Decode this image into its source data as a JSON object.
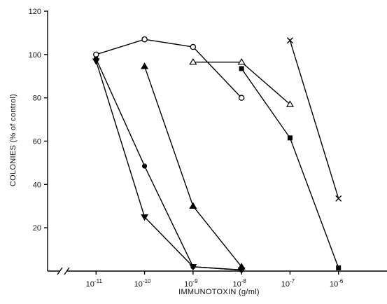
{
  "chart_data": {
    "type": "line",
    "title": "",
    "xlabel": "IMMUNOTOXIN (g/ml)",
    "ylabel": "COLONIES (% of control)",
    "x_scale": "log",
    "xlim": [
      1e-12,
      1e-05
    ],
    "ylim": [
      0,
      120
    ],
    "x_ticks": [
      {
        "value": 1e-11,
        "base": "10",
        "exp": "-11"
      },
      {
        "value": 1e-10,
        "base": "10",
        "exp": "-10"
      },
      {
        "value": 1e-09,
        "base": "10",
        "exp": "-9"
      },
      {
        "value": 1e-08,
        "base": "10",
        "exp": "-8"
      },
      {
        "value": 1e-07,
        "base": "10",
        "exp": "-7"
      },
      {
        "value": 1e-06,
        "base": "10",
        "exp": "-6"
      }
    ],
    "y_ticks": [
      20,
      40,
      60,
      80,
      100,
      120
    ],
    "axis_break": true,
    "grid": false,
    "legend": "none",
    "series": [
      {
        "marker": "open-circle",
        "points": [
          {
            "x": 1e-11,
            "y": 100
          },
          {
            "x": 1e-10,
            "y": 107
          },
          {
            "x": 1e-09,
            "y": 103.5
          },
          {
            "x": 1e-08,
            "y": 80
          }
        ]
      },
      {
        "marker": "filled-circle",
        "points": [
          {
            "x": 1e-11,
            "y": 98
          },
          {
            "x": 1e-10,
            "y": 48.5
          },
          {
            "x": 1e-09,
            "y": 2
          },
          {
            "x": 1e-08,
            "y": 0.5
          }
        ]
      },
      {
        "marker": "filled-triangle-down",
        "points": [
          {
            "x": 1e-11,
            "y": 97
          },
          {
            "x": 1e-10,
            "y": 25
          },
          {
            "x": 1e-09,
            "y": 2
          },
          {
            "x": 1e-08,
            "y": 0.5
          }
        ]
      },
      {
        "marker": "filled-triangle-up",
        "points": [
          {
            "x": 1e-10,
            "y": 94.5
          },
          {
            "x": 1e-09,
            "y": 30
          },
          {
            "x": 1e-08,
            "y": 2
          }
        ]
      },
      {
        "marker": "open-triangle-up",
        "points": [
          {
            "x": 1e-09,
            "y": 96.5
          },
          {
            "x": 1e-08,
            "y": 96.5
          },
          {
            "x": 1e-07,
            "y": 77
          }
        ]
      },
      {
        "marker": "filled-square",
        "points": [
          {
            "x": 1e-08,
            "y": 93.5
          },
          {
            "x": 1e-07,
            "y": 61.5
          },
          {
            "x": 1e-06,
            "y": 1.5
          }
        ]
      },
      {
        "marker": "cross",
        "points": [
          {
            "x": 1e-07,
            "y": 106.5
          },
          {
            "x": 1e-06,
            "y": 33.5
          }
        ]
      }
    ]
  }
}
